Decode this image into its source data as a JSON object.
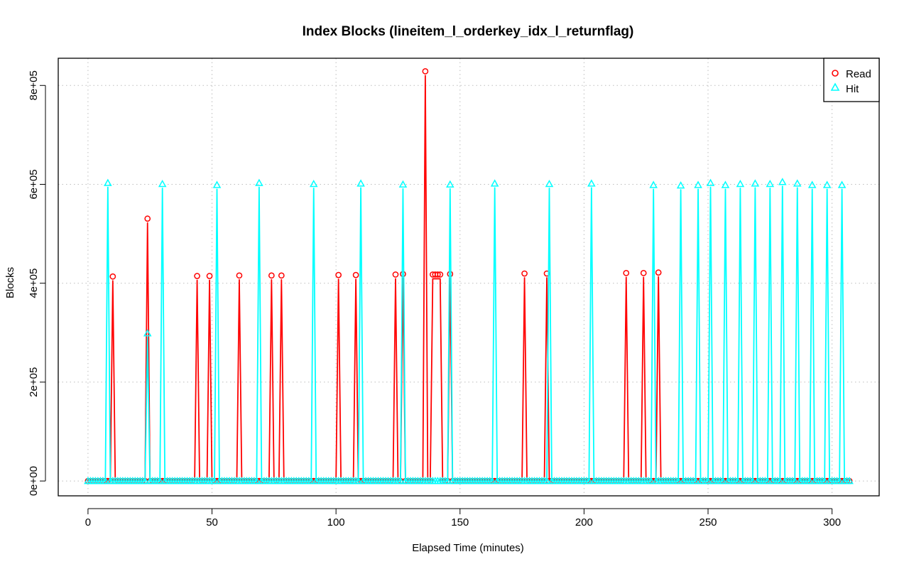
{
  "chart_data": {
    "type": "line",
    "title": "Index Blocks (lineitem_l_orderkey_idx_l_returnflag)",
    "xlabel": "Elapsed Time (minutes)",
    "ylabel": "Blocks",
    "xlim": [
      -12,
      319
    ],
    "ylim": [
      -30000,
      855000
    ],
    "x_ticks": [
      0,
      50,
      100,
      150,
      200,
      250,
      300
    ],
    "x_tick_labels": [
      "0",
      "50",
      "100",
      "150",
      "200",
      "250",
      "300"
    ],
    "y_ticks": [
      0,
      200000,
      400000,
      600000,
      800000
    ],
    "y_tick_labels": [
      "0e+00",
      "2e+05",
      "4e+05",
      "6e+05",
      "8e+05"
    ],
    "grid": true,
    "legend_position": "top-right",
    "x_range": [
      0,
      307
    ],
    "series": [
      {
        "name": "Read",
        "color": "#ff0000",
        "marker": "circle",
        "peaks": [
          {
            "x": 10,
            "y": 405000
          },
          {
            "x": 24,
            "y": 522000
          },
          {
            "x": 44,
            "y": 406000
          },
          {
            "x": 49,
            "y": 406000
          },
          {
            "x": 61,
            "y": 407000
          },
          {
            "x": 74,
            "y": 407000
          },
          {
            "x": 78,
            "y": 407000
          },
          {
            "x": 101,
            "y": 408000
          },
          {
            "x": 108,
            "y": 408000
          },
          {
            "x": 124,
            "y": 409000
          },
          {
            "x": 127,
            "y": 410000
          },
          {
            "x": 136,
            "y": 820000
          },
          {
            "x": 139,
            "y": 409000
          },
          {
            "x": 140,
            "y": 409000
          },
          {
            "x": 141,
            "y": 409000
          },
          {
            "x": 142,
            "y": 409000
          },
          {
            "x": 146,
            "y": 410000
          },
          {
            "x": 176,
            "y": 411000
          },
          {
            "x": 185,
            "y": 411000
          },
          {
            "x": 217,
            "y": 412000
          },
          {
            "x": 224,
            "y": 412000
          },
          {
            "x": 230,
            "y": 413000
          }
        ]
      },
      {
        "name": "Hit",
        "color": "#00ffff",
        "marker": "triangle",
        "peaks": [
          {
            "x": 8,
            "y": 594000
          },
          {
            "x": 24,
            "y": 290000
          },
          {
            "x": 30,
            "y": 592000
          },
          {
            "x": 52,
            "y": 590000
          },
          {
            "x": 69,
            "y": 594000
          },
          {
            "x": 91,
            "y": 592000
          },
          {
            "x": 110,
            "y": 593000
          },
          {
            "x": 127,
            "y": 591000
          },
          {
            "x": 146,
            "y": 591000
          },
          {
            "x": 164,
            "y": 593000
          },
          {
            "x": 186,
            "y": 592000
          },
          {
            "x": 203,
            "y": 593000
          },
          {
            "x": 228,
            "y": 590000
          },
          {
            "x": 239,
            "y": 589000
          },
          {
            "x": 246,
            "y": 590000
          },
          {
            "x": 251,
            "y": 594000
          },
          {
            "x": 257,
            "y": 590000
          },
          {
            "x": 263,
            "y": 592000
          },
          {
            "x": 269,
            "y": 593000
          },
          {
            "x": 275,
            "y": 592000
          },
          {
            "x": 280,
            "y": 596000
          },
          {
            "x": 286,
            "y": 593000
          },
          {
            "x": 292,
            "y": 590000
          },
          {
            "x": 298,
            "y": 590000
          },
          {
            "x": 304,
            "y": 590000
          }
        ]
      }
    ]
  }
}
